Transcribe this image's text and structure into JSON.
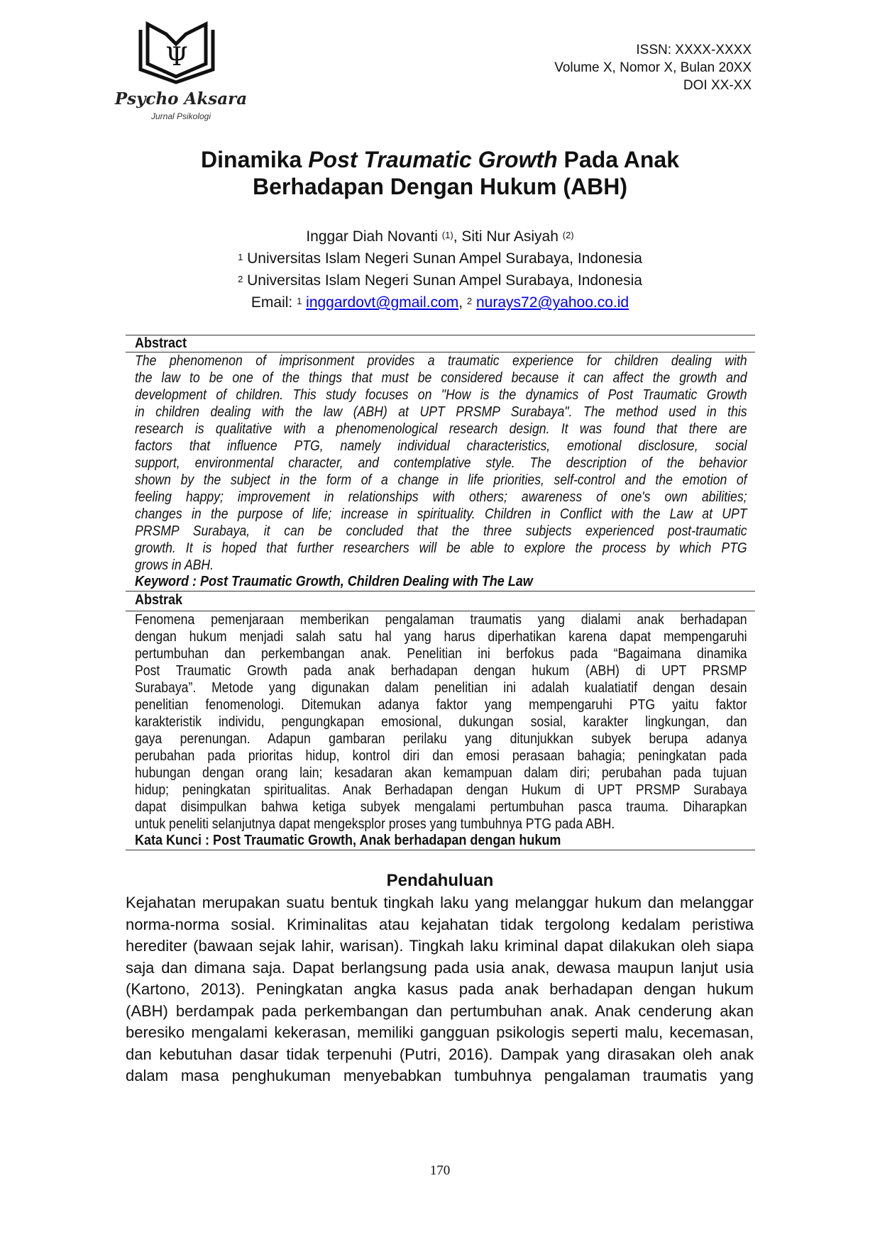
{
  "journal": {
    "name": "Psycho Aksara",
    "subtitle": "Jurnal Psikologi",
    "issn": "ISSN: XXXX-XXXX",
    "volume": "Volume X, Nomor X, Bulan 20XX",
    "doi": "DOI XX-XX"
  },
  "title": {
    "part1": "Dinamika ",
    "part2_italic": "Post Traumatic Growth",
    "part3": " Pada Anak",
    "line2": "Berhadapan Dengan Hukum (ABH)"
  },
  "authors": {
    "author1": "Inggar Diah Novanti ",
    "sup1": "(1)",
    "sep": ", ",
    "author2": "Siti Nur Asiyah ",
    "sup2": "(2)",
    "aff1_sup": "1",
    "aff1": " Universitas Islam Negeri Sunan Ampel Surabaya, Indonesia",
    "aff2_sup": "2",
    "aff2": " Universitas Islam Negeri Sunan Ampel Surabaya, Indonesia",
    "email_label": "Email: ",
    "email1_sup": "1",
    "email1": "inggardovt@gmail.com",
    "email_sep": ", ",
    "email2_sup": "2",
    "email2": "nurays72@yahoo.co.id"
  },
  "abstract": {
    "heading": "Abstract",
    "lines": [
      "The phenomenon of imprisonment provides a traumatic experience for children dealing with",
      "the law to be one of the things that must be considered because it can affect the growth and",
      "development of children. This study focuses on \"How is the dynamics of Post Traumatic Growth",
      "in children dealing with the law (ABH) at UPT PRSMP Surabaya\". The method used in this",
      "research is qualitative with a phenomenological research design. It was found that there are",
      "factors that influence PTG, namely individual characteristics, emotional disclosure, social",
      "support, environmental character, and contemplative style. The description of the behavior",
      "shown by the subject in the form of a change in life priorities, self-control and the emotion of",
      "feeling happy; improvement in relationships with others; awareness of one's own abilities;",
      "changes in the purpose of life; increase in spirituality. Children in Conflict with the Law at UPT",
      "PRSMP Surabaya, it can be concluded that the three subjects experienced post-traumatic",
      "growth. It is hoped that further researchers will be able to explore the process by which PTG",
      "grows in ABH."
    ],
    "keyword": "Keyword : Post Traumatic Growth, Children Dealing with The Law"
  },
  "abstrak": {
    "heading": "Abstrak",
    "lines": [
      "Fenomena pemenjaraan memberikan pengalaman traumatis yang dialami anak berhadapan",
      "dengan hukum menjadi salah satu hal yang harus diperhatikan karena dapat mempengaruhi",
      "pertumbuhan dan perkembangan anak. Penelitian ini berfokus pada “Bagaimana dinamika",
      "Post Traumatic Growth pada anak berhadapan dengan hukum (ABH) di UPT PRSMP",
      "Surabaya”. Metode yang digunakan dalam penelitian ini adalah kualatiatif dengan desain",
      "penelitian fenomenologi. Ditemukan adanya faktor yang mempengaruhi PTG yaitu faktor",
      "karakteristik individu, pengungkapan emosional, dukungan sosial, karakter lingkungan, dan",
      "gaya perenungan. Adapun gambaran perilaku yang ditunjukkan subyek berupa adanya",
      "perubahan pada prioritas hidup, kontrol diri dan emosi perasaan bahagia; peningkatan pada",
      "hubungan dengan orang lain; kesadaran akan kemampuan dalam diri; perubahan pada tujuan",
      "hidup; peningkatan spiritualitas. Anak Berhadapan dengan Hukum di UPT PRSMP Surabaya",
      "dapat disimpulkan bahwa ketiga subyek mengalami pertumbuhan pasca trauma. Diharapkan",
      "untuk peneliti selanjutnya dapat mengeksplor proses yang tumbuhnya PTG pada ABH."
    ],
    "keyword": "Kata Kunci : Post Traumatic Growth, Anak berhadapan dengan hukum"
  },
  "intro": {
    "heading": "Pendahuluan",
    "lines": [
      "Kejahatan merupakan suatu bentuk tingkah laku yang melanggar hukum dan melanggar",
      "norma-norma sosial. Kriminalitas atau kejahatan tidak tergolong kedalam peristiwa",
      "herediter (bawaan sejak lahir, warisan). Tingkah laku kriminal dapat dilakukan oleh siapa",
      "saja dan dimana saja. Dapat berlangsung pada usia anak, dewasa maupun lanjut usia",
      "(Kartono, 2013). Peningkatan angka kasus pada anak berhadapan dengan hukum",
      "(ABH) berdampak pada perkembangan dan pertumbuhan anak. Anak cenderung akan",
      "beresiko mengalami kekerasan, memiliki gangguan psikologis seperti malu, kecemasan,",
      "dan kebutuhan dasar tidak terpenuhi (Putri, 2016). Dampak yang dirasakan oleh anak",
      "dalam masa penghukuman menyebabkan tumbuhnya pengalaman traumatis yang"
    ]
  },
  "page_number": "170"
}
